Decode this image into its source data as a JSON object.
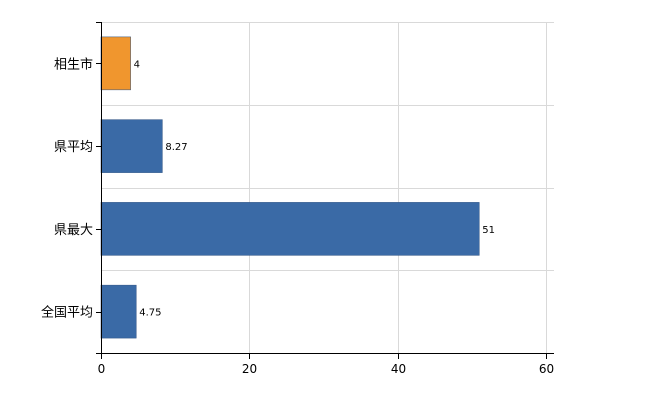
{
  "chart_data": {
    "type": "bar",
    "orientation": "horizontal",
    "categories": [
      "相生市",
      "県平均",
      "県最大",
      "全国平均"
    ],
    "values": [
      4,
      8.27,
      51,
      4.75
    ],
    "value_labels": [
      "4",
      "8.27",
      "51",
      "4.75"
    ],
    "bar_colors": [
      "#f0962e",
      "#3a6aa6",
      "#3a6aa6",
      "#3a6aa6"
    ],
    "title": "",
    "xlabel": "",
    "ylabel": "",
    "xlim": [
      0,
      60
    ],
    "x_ticks": [
      0,
      20,
      40,
      60
    ],
    "grid": true,
    "legend": "none"
  }
}
